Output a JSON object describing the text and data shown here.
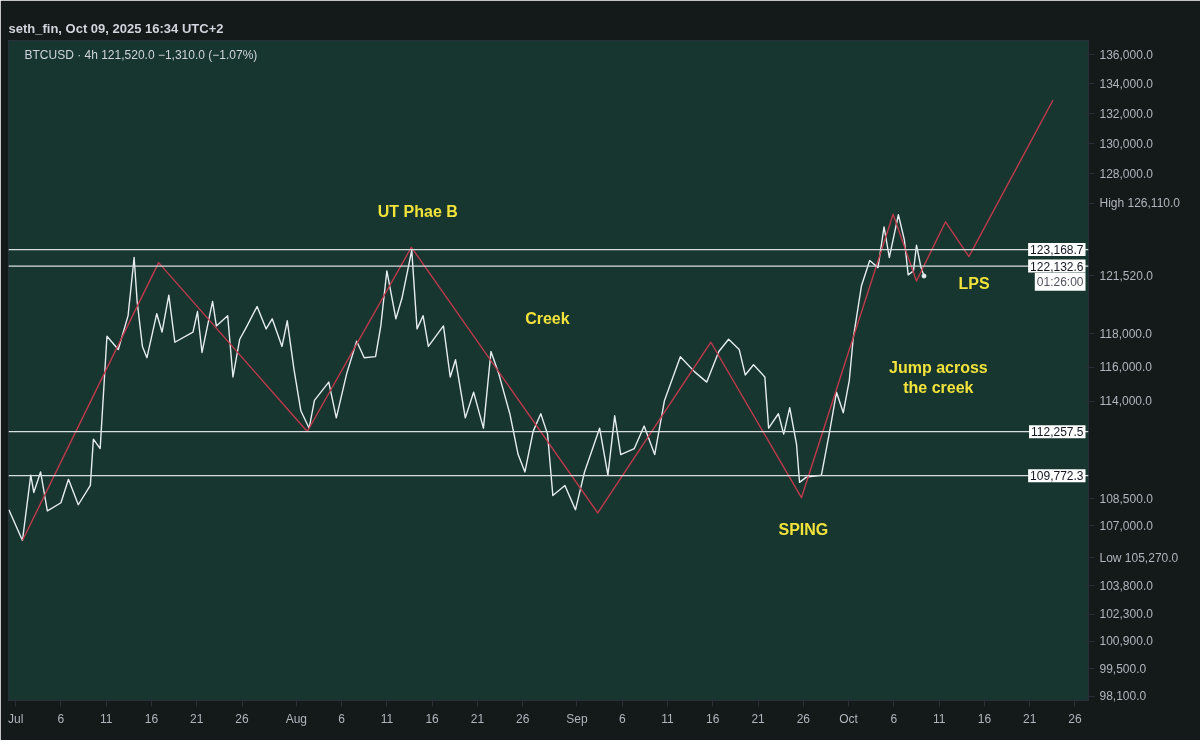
{
  "chart_data": {
    "type": "line",
    "title": "seth_fin, Oct 09, 2025 16:34 UTC+2",
    "subtitle": "BTCUSD · 4h   121,520.0  −1,310.0 (−1.07%)",
    "log": true,
    "grid": false,
    "marker": "none",
    "line_style": "solid",
    "xlim": [
      "2025-06-30T05:00",
      "2025-10-27T12:00"
    ],
    "xticks": [
      {
        "value": "2025-07-01",
        "label": "Jul"
      },
      {
        "value": "2025-07-06",
        "label": "6"
      },
      {
        "value": "2025-07-11",
        "label": "11"
      },
      {
        "value": "2025-07-16",
        "label": "16"
      },
      {
        "value": "2025-07-21",
        "label": "21"
      },
      {
        "value": "2025-07-26",
        "label": "26"
      },
      {
        "value": "2025-08-01",
        "label": "Aug"
      },
      {
        "value": "2025-08-06",
        "label": "6"
      },
      {
        "value": "2025-08-11",
        "label": "11"
      },
      {
        "value": "2025-08-16",
        "label": "16"
      },
      {
        "value": "2025-08-21",
        "label": "21"
      },
      {
        "value": "2025-08-26",
        "label": "26"
      },
      {
        "value": "2025-09-01",
        "label": "Sep"
      },
      {
        "value": "2025-09-06",
        "label": "6"
      },
      {
        "value": "2025-09-11",
        "label": "11"
      },
      {
        "value": "2025-09-16",
        "label": "16"
      },
      {
        "value": "2025-09-21",
        "label": "21"
      },
      {
        "value": "2025-09-26",
        "label": "26"
      },
      {
        "value": "2025-10-01",
        "label": "Oct"
      },
      {
        "value": "2025-10-06",
        "label": "6"
      },
      {
        "value": "2025-10-11",
        "label": "11"
      },
      {
        "value": "2025-10-16",
        "label": "16"
      },
      {
        "value": "2025-10-21",
        "label": "21"
      },
      {
        "value": "2025-10-26",
        "label": "26"
      }
    ],
    "ylim": [
      97900,
      137000
    ],
    "yticks": [
      {
        "value": 136000,
        "label": "136,000.0"
      },
      {
        "value": 134000,
        "label": "134,000.0"
      },
      {
        "value": 132000,
        "label": "132,000.0"
      },
      {
        "value": 130000,
        "label": "130,000.0"
      },
      {
        "value": 128000,
        "label": "128,000.0"
      },
      {
        "value": 126110,
        "label": "High 126,110.0"
      },
      {
        "value": 121520,
        "label": "121,520.0"
      },
      {
        "value": 118000,
        "label": "118,000.0"
      },
      {
        "value": 116000,
        "label": "116,000.0"
      },
      {
        "value": 114000,
        "label": "114,000.0"
      },
      {
        "value": 108500,
        "label": "108,500.0"
      },
      {
        "value": 107000,
        "label": "107,000.0"
      },
      {
        "value": 105270,
        "label": "Low 105,270.0"
      },
      {
        "value": 103800,
        "label": "103,800.0"
      },
      {
        "value": 102300,
        "label": "102,300.0"
      },
      {
        "value": 100900,
        "label": "100,900.0"
      },
      {
        "value": 99500,
        "label": "99,500.0"
      },
      {
        "value": 98100,
        "label": "98,100.0"
      }
    ],
    "ref_lines": [
      {
        "axis": "y",
        "value": 123168.7,
        "label": "123,168.7",
        "color": "#d8dde0"
      },
      {
        "axis": "y",
        "value": 122132.6,
        "label": "122,132.6",
        "color": "#d8dde0"
      },
      {
        "axis": "y",
        "value": 112257.5,
        "label": "112,257.5",
        "color": "#d8dde0"
      },
      {
        "axis": "y",
        "value": 109772.3,
        "label": "109,772.3",
        "color": "#d8dde0"
      }
    ],
    "annotations": [
      "UT Phae B",
      "Creek",
      "SPING",
      "Jump across\nthe creek",
      "LPS",
      "01:26:00"
    ],
    "series": [
      {
        "color": "#e6ecef",
        "x": [
          "2025-06-30T06:00",
          "2025-06-30T18:00",
          "2025-07-01T18:00",
          "2025-07-02T16:00",
          "2025-07-03T00:00",
          "2025-07-03T18:00",
          "2025-07-04T12:00",
          "2025-07-06T00:00",
          "2025-07-06T20:00",
          "2025-07-07T22:00",
          "2025-07-09T06:00",
          "2025-07-09T14:00",
          "2025-07-10T08:00",
          "2025-07-11T02:00",
          "2025-07-12T08:00",
          "2025-07-13T10:00",
          "2025-07-14T02:00",
          "2025-07-14T10:00",
          "2025-07-15T00:00",
          "2025-07-15T12:00",
          "2025-07-16T14:00",
          "2025-07-17T04:00",
          "2025-07-17T22:00",
          "2025-07-18T14:00",
          "2025-07-20T14:00",
          "2025-07-21T02:00",
          "2025-07-21T14:00",
          "2025-07-22T18:00",
          "2025-07-23T04:00",
          "2025-07-24T10:00",
          "2025-07-25T00:00",
          "2025-07-25T18:00",
          "2025-07-26T12:00",
          "2025-07-27T16:00",
          "2025-07-28T16:00",
          "2025-07-29T08:00",
          "2025-07-30T10:00",
          "2025-07-31T00:00",
          "2025-07-31T18:00",
          "2025-08-01T12:00",
          "2025-08-02T10:00",
          "2025-08-03T00:00",
          "2025-08-04T14:00",
          "2025-08-05T10:00",
          "2025-08-06T14:00",
          "2025-08-07T16:00",
          "2025-08-08T12:00",
          "2025-08-09T18:00",
          "2025-08-10T08:00",
          "2025-08-11T00:00",
          "2025-08-12T00:00",
          "2025-08-12T16:00",
          "2025-08-13T18:00",
          "2025-08-14T08:00",
          "2025-08-15T00:00",
          "2025-08-15T14:00",
          "2025-08-17T06:00",
          "2025-08-18T00:00",
          "2025-08-18T14:00",
          "2025-08-19T16:00",
          "2025-08-20T14:00",
          "2025-08-21T16:00",
          "2025-08-22T12:00",
          "2025-08-23T08:00",
          "2025-08-24T14:00",
          "2025-08-25T12:00",
          "2025-08-26T06:00",
          "2025-08-27T04:00",
          "2025-08-28T00:00",
          "2025-08-28T18:00",
          "2025-08-29T08:00",
          "2025-08-30T16:00",
          "2025-08-31T20:00",
          "2025-09-01T20:00",
          "2025-09-03T12:00",
          "2025-09-04T10:00",
          "2025-09-05T04:00",
          "2025-09-05T20:00",
          "2025-09-07T08:00",
          "2025-09-08T10:00",
          "2025-09-09T14:00",
          "2025-09-10T16:00",
          "2025-09-12T10:00",
          "2025-09-14T00:00",
          "2025-09-15T08:00",
          "2025-09-16T16:00",
          "2025-09-17T18:00",
          "2025-09-18T22:00",
          "2025-09-19T14:00",
          "2025-09-20T12:00",
          "2025-09-21T18:00",
          "2025-09-22T04:00",
          "2025-09-23T06:00",
          "2025-09-23T20:00",
          "2025-09-24T12:00",
          "2025-09-25T06:00",
          "2025-09-25T14:00",
          "2025-09-26T08:00",
          "2025-09-28T00:00",
          "2025-09-28T22:00",
          "2025-09-29T16:00",
          "2025-09-30T10:00",
          "2025-10-01T02:00",
          "2025-10-01T12:00",
          "2025-10-02T10:00",
          "2025-10-03T08:00",
          "2025-10-04T06:00",
          "2025-10-04T22:00",
          "2025-10-05T12:00",
          "2025-10-06T12:00",
          "2025-10-07T04:00",
          "2025-10-07T14:00",
          "2025-10-08T04:00",
          "2025-10-08T12:00",
          "2025-10-09T00:00",
          "2025-10-09T08:00"
        ],
        "values": [
          107880,
          107320,
          106210,
          109800,
          108840,
          109980,
          107820,
          108270,
          109570,
          108160,
          109230,
          111830,
          111300,
          117850,
          117060,
          119090,
          122670,
          119960,
          117240,
          116570,
          119210,
          118100,
          120340,
          117490,
          118100,
          119340,
          116880,
          119960,
          118470,
          119090,
          115430,
          117670,
          118410,
          119650,
          118290,
          118900,
          117240,
          118780,
          115850,
          113460,
          112460,
          114060,
          115130,
          113050,
          115670,
          117550,
          116570,
          116630,
          118470,
          121840,
          118900,
          120150,
          123120,
          118290,
          119090,
          117240,
          118470,
          115430,
          116450,
          113050,
          114540,
          112460,
          116940,
          115670,
          113290,
          110960,
          109980,
          112290,
          113290,
          112120,
          108670,
          109230,
          107880,
          109980,
          112460,
          109800,
          113170,
          110960,
          111300,
          112580,
          110960,
          114060,
          116630,
          115730,
          115130,
          116940,
          117670,
          117060,
          115550,
          116150,
          115430,
          112460,
          113290,
          112120,
          113640,
          111540,
          109400,
          109690,
          109800,
          112290,
          114540,
          113350,
          115250,
          117670,
          120900,
          122480,
          122040,
          124600,
          122670,
          125370,
          123760,
          121590,
          121840,
          123440,
          122040,
          121520
        ]
      },
      {
        "color": "#c0394b",
        "x": [
          "2025-07-01T18:00",
          "2025-07-16T19:00",
          "2025-08-02T05:00",
          "2025-08-13T17:00",
          "2025-09-03T07:00",
          "2025-09-15T19:00",
          "2025-09-25T19:00",
          "2025-10-05T22:00",
          "2025-10-08T12:00",
          "2025-10-11T17:00",
          "2025-10-14T07:00",
          "2025-10-23T14:00"
        ],
        "values": [
          106210,
          122350,
          112270,
          123310,
          107710,
          117490,
          108550,
          125400,
          121210,
          124920,
          122730,
          132910
        ]
      }
    ]
  }
}
